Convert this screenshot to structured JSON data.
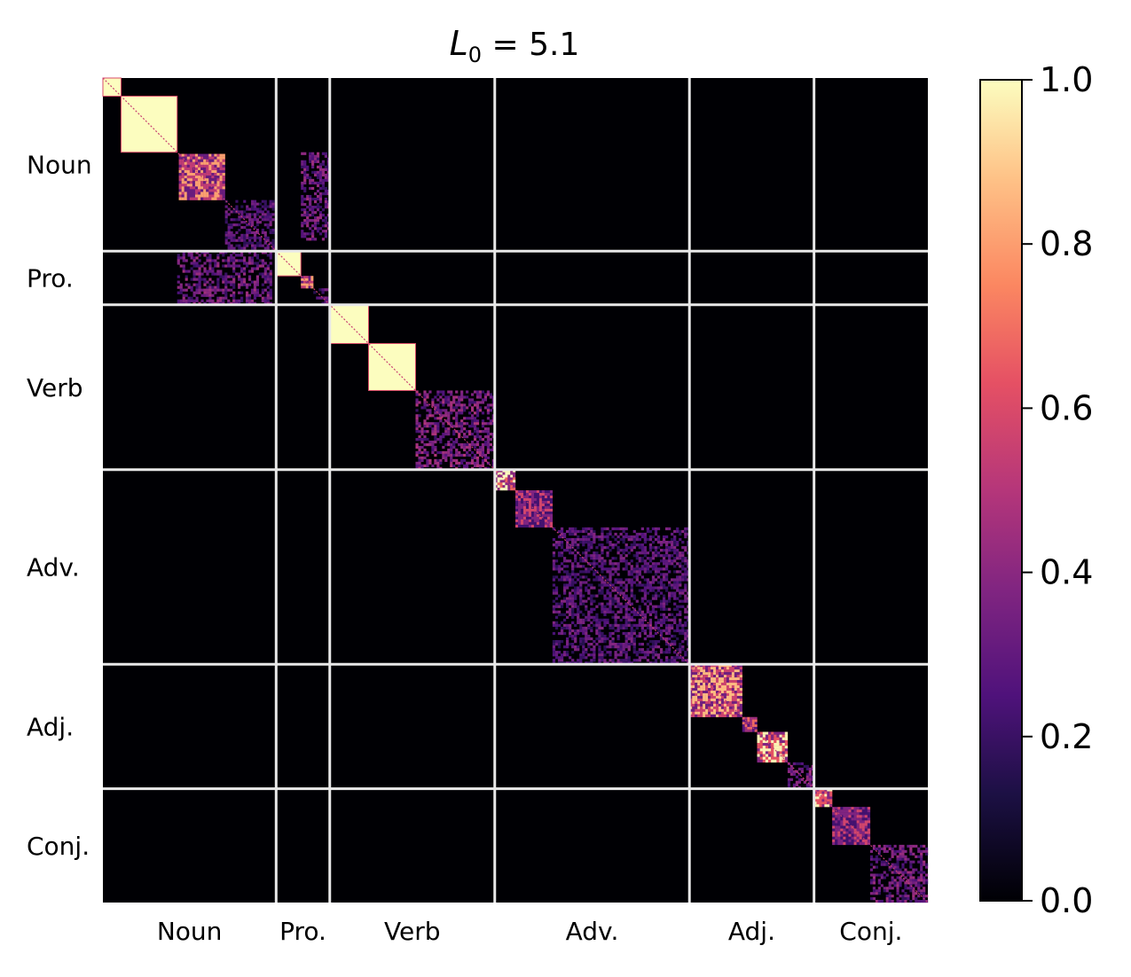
{
  "chart_data": {
    "type": "heatmap",
    "title": {
      "symbol": "L",
      "subscript": "0",
      "rest": " = 5.1"
    },
    "categories": [
      "Noun",
      "Pro.",
      "Verb",
      "Adv.",
      "Adj.",
      "Conj."
    ],
    "category_boundaries": [
      0,
      0.21,
      0.275,
      0.475,
      0.711,
      0.862,
      1.0
    ],
    "colormap": "magma",
    "colorbar": {
      "vmin": 0.0,
      "vmax": 1.0,
      "ticks": [
        0.0,
        0.2,
        0.4,
        0.6,
        0.8,
        1.0
      ],
      "tick_labels": [
        "0.0",
        "0.2",
        "0.4",
        "0.6",
        "0.8",
        "1.0"
      ]
    },
    "divider_color": "#e8e8e8",
    "background_value": 0.0,
    "blocks": [
      {
        "start": 0.0,
        "end": 0.022,
        "value": 1.0,
        "pattern": "solid"
      },
      {
        "start": 0.022,
        "end": 0.09,
        "value": 1.0,
        "pattern": "solid"
      },
      {
        "start": 0.092,
        "end": 0.148,
        "value": 0.7,
        "pattern": "mixed"
      },
      {
        "start": 0.148,
        "end": 0.208,
        "value": 0.3,
        "pattern": "sparse"
      },
      {
        "start": 0.21,
        "end": 0.24,
        "value": 1.0,
        "pattern": "solid"
      },
      {
        "start": 0.24,
        "end": 0.255,
        "value": 0.7,
        "pattern": "mixed"
      },
      {
        "start": 0.255,
        "end": 0.275,
        "value": 0.3,
        "pattern": "sparse"
      },
      {
        "start": 0.275,
        "end": 0.322,
        "value": 1.0,
        "pattern": "solid"
      },
      {
        "start": 0.322,
        "end": 0.379,
        "value": 1.0,
        "pattern": "solid"
      },
      {
        "start": 0.379,
        "end": 0.475,
        "value": 0.38,
        "pattern": "sparse"
      },
      {
        "start": 0.475,
        "end": 0.5,
        "value": 0.9,
        "pattern": "mixed"
      },
      {
        "start": 0.5,
        "end": 0.545,
        "value": 0.5,
        "pattern": "mixed"
      },
      {
        "start": 0.545,
        "end": 0.711,
        "value": 0.3,
        "pattern": "sparse"
      },
      {
        "start": 0.711,
        "end": 0.775,
        "value": 0.75,
        "pattern": "mixed"
      },
      {
        "start": 0.775,
        "end": 0.793,
        "value": 0.6,
        "pattern": "mixed"
      },
      {
        "start": 0.793,
        "end": 0.83,
        "value": 0.85,
        "pattern": "mixed"
      },
      {
        "start": 0.83,
        "end": 0.862,
        "value": 0.35,
        "pattern": "sparse"
      },
      {
        "start": 0.862,
        "end": 0.884,
        "value": 0.85,
        "pattern": "mixed"
      },
      {
        "start": 0.884,
        "end": 0.93,
        "value": 0.5,
        "pattern": "mixed"
      },
      {
        "start": 0.93,
        "end": 1.0,
        "value": 0.35,
        "pattern": "sparse"
      }
    ],
    "off_diagonal": [
      {
        "rows": [
          0.09,
          0.197
        ],
        "cols": [
          0.24,
          0.275
        ],
        "value": 0.35
      },
      {
        "rows": [
          0.21,
          0.275
        ],
        "cols": [
          0.09,
          0.205
        ],
        "value": 0.35
      }
    ]
  }
}
